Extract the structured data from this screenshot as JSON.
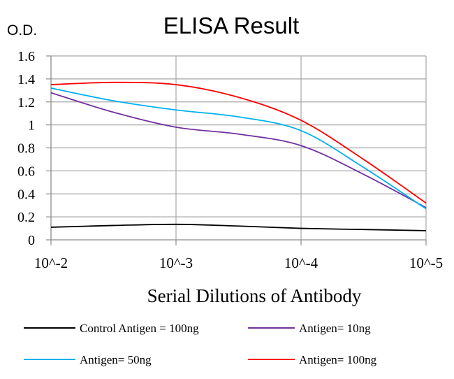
{
  "chart_data": {
    "type": "line",
    "title": "ELISA Result",
    "ylabel": "O.D.",
    "xlabel": "Serial Dilutions of Antibody",
    "x_ticks": [
      "10^-2",
      "10^-3",
      "10^-4",
      "10^-5"
    ],
    "y_ticks": [
      "0",
      "0.2",
      "0.4",
      "0.6",
      "0.8",
      "1",
      "1.2",
      "1.4",
      "1.6"
    ],
    "ylim": [
      0,
      1.6
    ],
    "xlim": [
      0,
      3
    ],
    "grid": "vertical and horizontal",
    "legend_position": "bottom",
    "series": [
      {
        "name": "Control Antigen = 100ng",
        "color": "#000000",
        "x": [
          0,
          0.5,
          1,
          1.5,
          2,
          2.5,
          3
        ],
        "y": [
          0.11,
          0.125,
          0.135,
          0.12,
          0.1,
          0.09,
          0.08
        ]
      },
      {
        "name": "Antigen= 10ng",
        "color": "#7030a0",
        "x": [
          0,
          0.5,
          1,
          1.5,
          2,
          2.5,
          3
        ],
        "y": [
          1.28,
          1.11,
          0.98,
          0.92,
          0.82,
          0.57,
          0.28
        ]
      },
      {
        "name": "Antigen= 50ng",
        "color": "#00b0f0",
        "x": [
          0,
          0.5,
          1,
          1.5,
          2,
          2.5,
          3
        ],
        "y": [
          1.32,
          1.21,
          1.13,
          1.07,
          0.95,
          0.63,
          0.27
        ]
      },
      {
        "name": "Antigen= 100ng",
        "color": "#ff0000",
        "x": [
          0,
          0.5,
          1,
          1.5,
          2,
          2.5,
          3
        ],
        "y": [
          1.35,
          1.37,
          1.35,
          1.24,
          1.04,
          0.7,
          0.32
        ]
      }
    ]
  }
}
